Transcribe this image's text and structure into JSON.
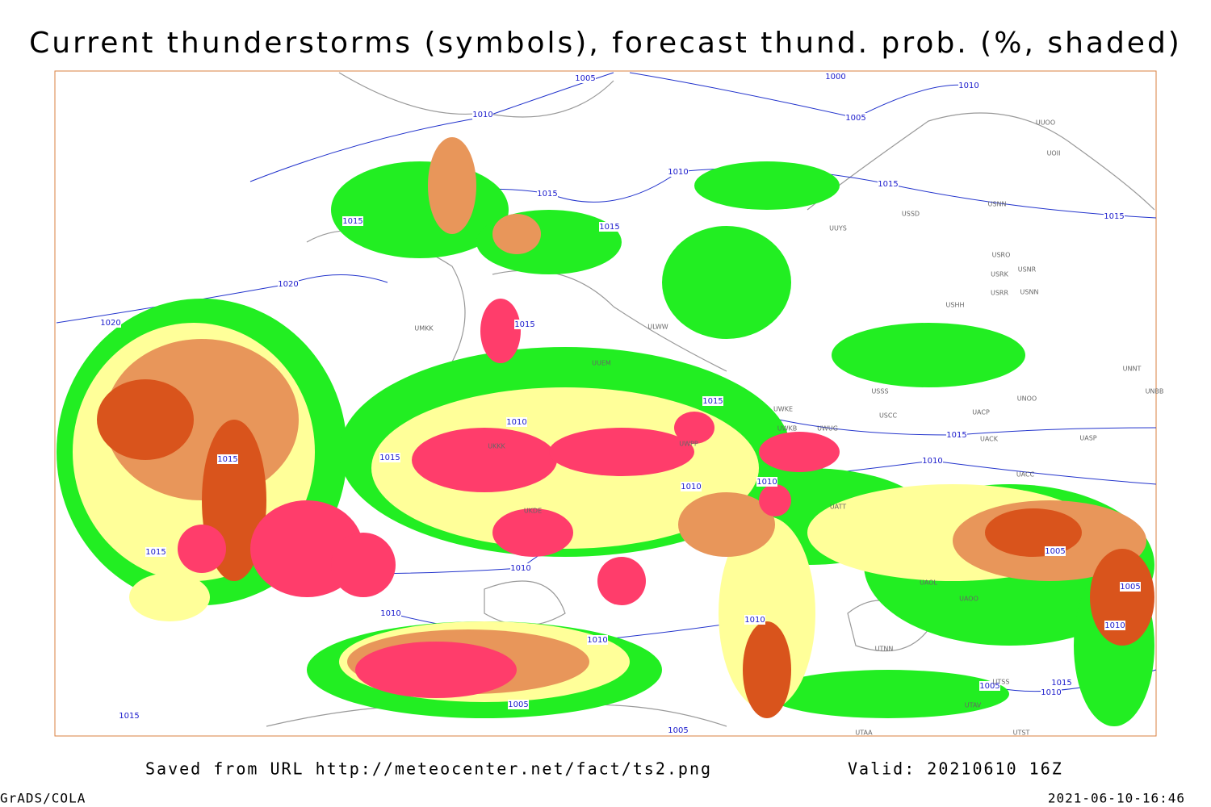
{
  "title": "Current thunderstorms (symbols), forecast thund. prob. (%, shaded)",
  "isobar_labels": [
    "1005",
    "1000",
    "1010",
    "1010",
    "1005",
    "1010",
    "1015",
    "1015",
    "1015",
    "1015",
    "1015",
    "1020",
    "1020",
    "1015",
    "1015",
    "1010",
    "1015",
    "1015",
    "1015",
    "1010",
    "1010",
    "1010",
    "1015",
    "1010",
    "1005",
    "1005",
    "1010",
    "1010",
    "1010",
    "1010",
    "1015",
    "1010",
    "1005",
    "1005",
    "1015",
    "1005"
  ],
  "stations": [
    "UUOO",
    "UOII",
    "USSD",
    "USNN",
    "USRO",
    "USRK",
    "USNR",
    "USRR",
    "USNN",
    "USHH",
    "UNNT",
    "UNBB",
    "UNOO",
    "UACP",
    "UACK",
    "UASP",
    "UACC",
    "USCC",
    "USSS",
    "UWKE",
    "UWUG",
    "UWKB",
    "UWPP",
    "UUEM",
    "ULWW",
    "UMKK",
    "UKKK",
    "UKDE",
    "UATT",
    "UAOL",
    "UAOO",
    "UTNN",
    "UTAA",
    "UTAV",
    "UTST",
    "UTSS",
    "UUYS"
  ],
  "footer": {
    "source": "Saved from URL http://meteocenter.net/fact/ts2.png",
    "valid": "Valid: 20210610 16Z",
    "credit": "GrADS/COLA",
    "timestamp": "2021-06-10-16:46"
  }
}
